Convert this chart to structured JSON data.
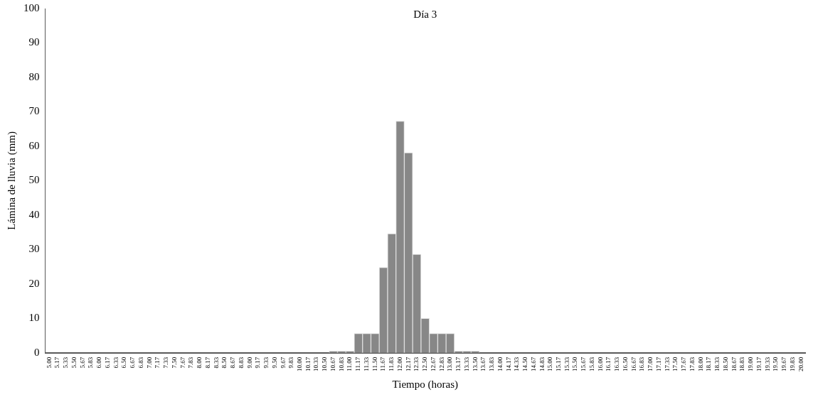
{
  "chart_data": {
    "type": "bar",
    "title": "Día 3",
    "xlabel": "Tiempo (horas)",
    "ylabel": "Lámina de lluvia (mm)",
    "categories": [
      "5.00",
      "5.17",
      "5.33",
      "5.50",
      "5.67",
      "5.83",
      "6.00",
      "6.17",
      "6.33",
      "6.50",
      "6.67",
      "6.83",
      "7.00",
      "7.17",
      "7.33",
      "7.50",
      "7.67",
      "7.83",
      "8.00",
      "8.17",
      "8.33",
      "8.50",
      "8.67",
      "8.83",
      "9.00",
      "9.17",
      "9.33",
      "9.50",
      "9.67",
      "9.83",
      "10.00",
      "10.17",
      "10.33",
      "10.50",
      "10.67",
      "10.83",
      "11.00",
      "11.17",
      "11.33",
      "11.50",
      "11.67",
      "11.83",
      "12.00",
      "12.17",
      "12.33",
      "12.50",
      "12.67",
      "12.83",
      "13.00",
      "13.17",
      "13.33",
      "13.50",
      "13.67",
      "13.83",
      "14.00",
      "14.17",
      "14.33",
      "14.50",
      "14.67",
      "14.83",
      "15.00",
      "15.17",
      "15.33",
      "15.50",
      "15.67",
      "15.83",
      "16.00",
      "16.17",
      "16.33",
      "16.50",
      "16.67",
      "16.83",
      "17.00",
      "17.17",
      "17.33",
      "17.50",
      "17.67",
      "17.83",
      "18.00",
      "18.17",
      "18.33",
      "18.50",
      "18.67",
      "18.83",
      "19.00",
      "19.17",
      "19.33",
      "19.50",
      "19.67",
      "19.83",
      "20.00"
    ],
    "values": [
      0,
      0,
      0,
      0,
      0,
      0,
      0,
      0,
      0,
      0,
      0,
      0,
      0,
      0,
      0,
      0,
      0,
      0,
      0,
      0,
      0,
      0,
      0,
      0,
      0,
      0,
      0,
      0,
      0,
      0,
      0,
      0,
      0,
      0,
      0.5,
      0.5,
      0.5,
      5.6,
      5.6,
      5.6,
      24.8,
      34.6,
      67.3,
      58.1,
      28.6,
      10.0,
      5.6,
      5.6,
      5.6,
      0.5,
      0.5,
      0.5,
      0,
      0,
      0,
      0,
      0,
      0,
      0,
      0,
      0,
      0,
      0,
      0,
      0,
      0,
      0,
      0,
      0,
      0,
      0,
      0,
      0,
      0,
      0,
      0,
      0,
      0,
      0,
      0,
      0,
      0,
      0,
      0,
      0,
      0,
      0,
      0,
      0,
      0,
      0
    ],
    "color": "#878787",
    "ylim": [
      0,
      100
    ],
    "yticks": [
      0,
      10,
      20,
      30,
      40,
      50,
      60,
      70,
      80,
      90,
      100
    ],
    "grid": false,
    "legend": false
  }
}
